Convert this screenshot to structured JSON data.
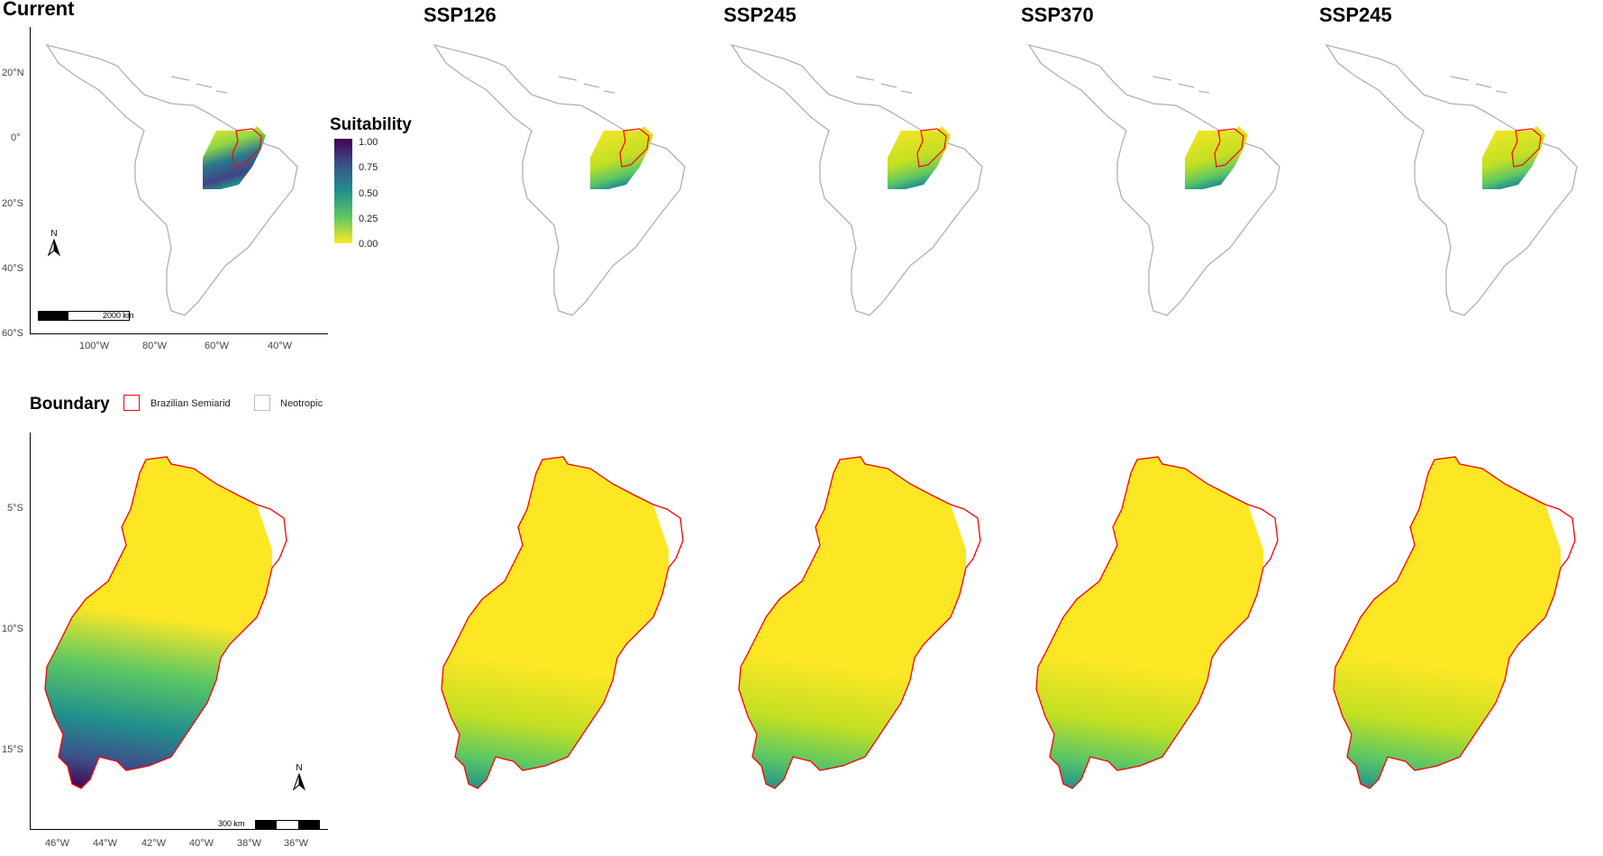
{
  "panels": {
    "top": [
      "Current",
      "SSP126",
      "SSP245",
      "SSP370",
      "SSP245"
    ]
  },
  "legend": {
    "title": "Suitability",
    "ticks": [
      "1.00",
      "0.75",
      "0.50",
      "0.25",
      "0.00"
    ],
    "colors": [
      "#440154",
      "#3b528b",
      "#21908c",
      "#5dc863",
      "#fde725"
    ]
  },
  "boundary": {
    "title": "Boundary",
    "items": [
      {
        "label": "Brazilian Semiarid",
        "color": "#ff0000"
      },
      {
        "label": "Neotropic",
        "color": "#bdbdbd"
      }
    ]
  },
  "top_axis": {
    "y_labels": [
      "20°N",
      "0°",
      "20°S",
      "40°S",
      "60°S"
    ],
    "x_labels": [
      "100°W",
      "80°W",
      "60°W",
      "40°W"
    ]
  },
  "bottom_axis": {
    "y_labels": [
      "5°S",
      "10°S",
      "15°S"
    ],
    "x_labels": [
      "46°W",
      "44°W",
      "42°W",
      "40°W",
      "38°W",
      "36°W"
    ]
  },
  "scalebars": {
    "top": "2000 km",
    "bottom": "300 km"
  },
  "north_arrow": "N"
}
